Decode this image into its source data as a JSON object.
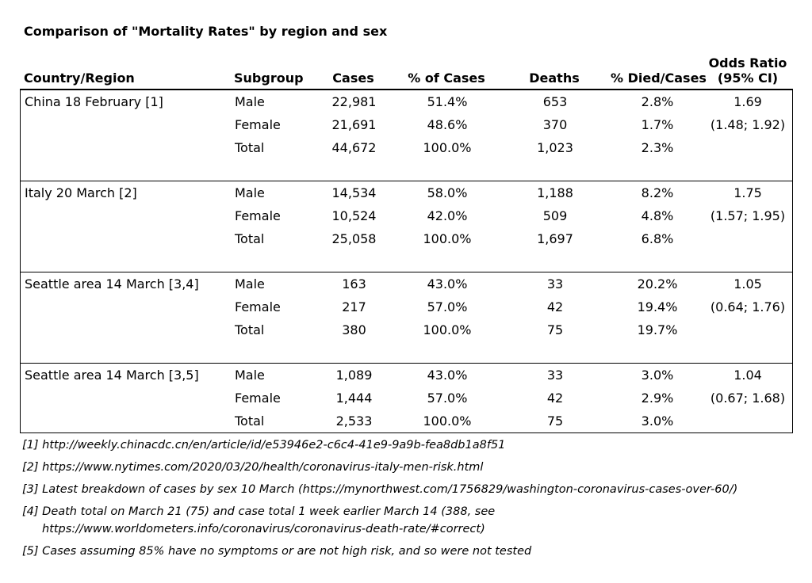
{
  "title": "Comparison of \"Mortality Rates\" by region and sex",
  "table": {
    "headers": {
      "country": "Country/Region",
      "subgroup": "Subgroup",
      "cases": "Cases",
      "pct_cases": "% of Cases",
      "deaths": "Deaths",
      "pct_died": "% Died/Cases",
      "odds_line1": "Odds Ratio",
      "odds_line2": "(95% CI)"
    },
    "blocks": [
      {
        "region": "China 18 February [1]",
        "rows": [
          {
            "subgroup": "Male",
            "cases": "22,981",
            "pct_cases": "51.4%",
            "deaths": "653",
            "pct_died": "2.8%",
            "odds": "1.69"
          },
          {
            "subgroup": "Female",
            "cases": "21,691",
            "pct_cases": "48.6%",
            "deaths": "370",
            "pct_died": "1.7%",
            "odds": "(1.48; 1.92)"
          },
          {
            "subgroup": "Total",
            "cases": "44,672",
            "pct_cases": "100.0%",
            "deaths": "1,023",
            "pct_died": "2.3%",
            "odds": ""
          }
        ]
      },
      {
        "region": "Italy 20 March [2]",
        "rows": [
          {
            "subgroup": "Male",
            "cases": "14,534",
            "pct_cases": "58.0%",
            "deaths": "1,188",
            "pct_died": "8.2%",
            "odds": "1.75"
          },
          {
            "subgroup": "Female",
            "cases": "10,524",
            "pct_cases": "42.0%",
            "deaths": "509",
            "pct_died": "4.8%",
            "odds": "(1.57; 1.95)"
          },
          {
            "subgroup": "Total",
            "cases": "25,058",
            "pct_cases": "100.0%",
            "deaths": "1,697",
            "pct_died": "6.8%",
            "odds": ""
          }
        ]
      },
      {
        "region": "Seattle area 14 March [3,4]",
        "rows": [
          {
            "subgroup": "Male",
            "cases": "163",
            "pct_cases": "43.0%",
            "deaths": "33",
            "pct_died": "20.2%",
            "odds": "1.05"
          },
          {
            "subgroup": "Female",
            "cases": "217",
            "pct_cases": "57.0%",
            "deaths": "42",
            "pct_died": "19.4%",
            "odds": "(0.64; 1.76)"
          },
          {
            "subgroup": "Total",
            "cases": "380",
            "pct_cases": "100.0%",
            "deaths": "75",
            "pct_died": "19.7%",
            "odds": ""
          }
        ]
      },
      {
        "region": "Seattle area 14 March [3,5]",
        "rows": [
          {
            "subgroup": "Male",
            "cases": "1,089",
            "pct_cases": "43.0%",
            "deaths": "33",
            "pct_died": "3.0%",
            "odds": "1.04"
          },
          {
            "subgroup": "Female",
            "cases": "1,444",
            "pct_cases": "57.0%",
            "deaths": "42",
            "pct_died": "2.9%",
            "odds": "(0.67; 1.68)"
          },
          {
            "subgroup": "Total",
            "cases": "2,533",
            "pct_cases": "100.0%",
            "deaths": "75",
            "pct_died": "3.0%",
            "odds": ""
          }
        ]
      }
    ]
  },
  "footnotes": [
    {
      "text": "[1] http://weekly.chinacdc.cn/en/article/id/e53946e2-c6c4-41e9-9a9b-fea8db1a8f51"
    },
    {
      "text": "[2] https://www.nytimes.com/2020/03/20/health/coronavirus-italy-men-risk.html"
    },
    {
      "text": "[3] Latest breakdown of cases by sex 10 March (https://mynorthwest.com/1756829/washington-coronavirus-cases-over-60/)"
    },
    {
      "text": "[4] Death total on March 21 (75) and case total 1 week earlier March 14 (388, see",
      "text2": "https://www.worldometers.info/coronavirus/coronavirus-death-rate/#correct)"
    },
    {
      "text": "[5] Cases assuming 85% have no symptoms or are not high risk, and so were not tested"
    }
  ]
}
